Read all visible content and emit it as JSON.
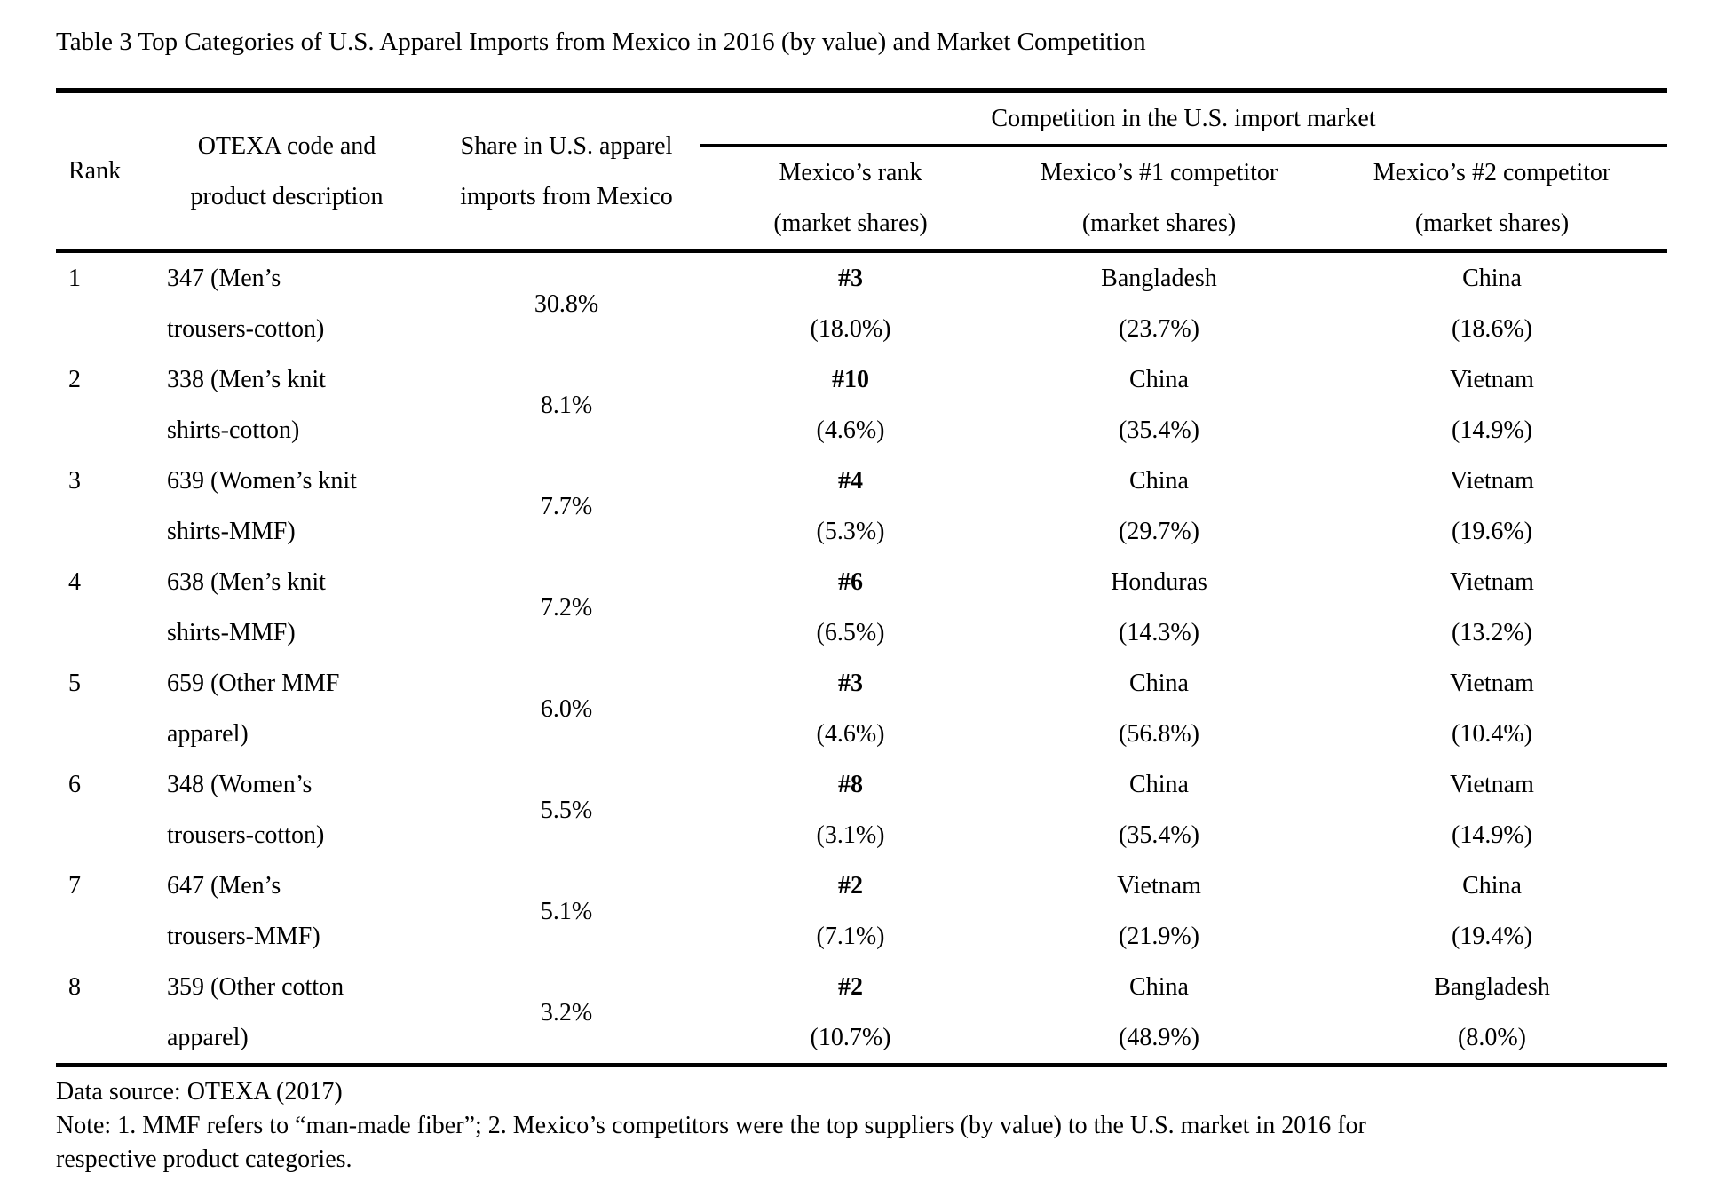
{
  "title": "Table 3 Top Categories of U.S. Apparel Imports from Mexico in 2016 (by value) and Market Competition",
  "colors": {
    "text": "#000000",
    "background": "#ffffff",
    "rule": "#000000"
  },
  "header": {
    "rank": "Rank",
    "otexa_line1": "OTEXA code and",
    "otexa_line2": "product description",
    "share_line1": "Share in U.S. apparel",
    "share_line2": "imports from Mexico",
    "competition_group": "Competition in the U.S. import market",
    "mexico_rank_line1": "Mexico’s rank",
    "mexico_rank_line2": "(market shares)",
    "comp1_line1": "Mexico’s #1 competitor",
    "comp1_line2": "(market shares)",
    "comp2_line1": "Mexico’s #2 competitor",
    "comp2_line2": "(market shares)"
  },
  "rows": [
    {
      "rank": "1",
      "desc": [
        "347 (Men’s",
        "trousers-cotton)"
      ],
      "share": "30.8%",
      "mx": [
        "#3",
        "(18.0%)"
      ],
      "c1": [
        "Bangladesh",
        "(23.7%)"
      ],
      "c2": [
        "China",
        "(18.6%)"
      ]
    },
    {
      "rank": "2",
      "desc": [
        "338 (Men’s knit",
        "shirts-cotton)"
      ],
      "share": "8.1%",
      "mx": [
        "#10",
        "(4.6%)"
      ],
      "c1": [
        "China",
        "(35.4%)"
      ],
      "c2": [
        "Vietnam",
        "(14.9%)"
      ]
    },
    {
      "rank": "3",
      "desc": [
        "639 (Women’s knit",
        "shirts-MMF)"
      ],
      "share": "7.7%",
      "mx": [
        "#4",
        "(5.3%)"
      ],
      "c1": [
        "China",
        "(29.7%)"
      ],
      "c2": [
        "Vietnam",
        "(19.6%)"
      ]
    },
    {
      "rank": "4",
      "desc": [
        "638 (Men’s knit",
        "shirts-MMF)"
      ],
      "share": "7.2%",
      "mx": [
        "#6",
        "(6.5%)"
      ],
      "c1": [
        "Honduras",
        "(14.3%)"
      ],
      "c2": [
        "Vietnam",
        "(13.2%)"
      ]
    },
    {
      "rank": "5",
      "desc": [
        "659 (Other MMF",
        "apparel)"
      ],
      "share": "6.0%",
      "mx": [
        "#3",
        "(4.6%)"
      ],
      "c1": [
        "China",
        "(56.8%)"
      ],
      "c2": [
        "Vietnam",
        "(10.4%)"
      ]
    },
    {
      "rank": "6",
      "desc": [
        "348 (Women’s",
        "trousers-cotton)"
      ],
      "share": "5.5%",
      "mx": [
        "#8",
        "(3.1%)"
      ],
      "c1": [
        "China",
        "(35.4%)"
      ],
      "c2": [
        "Vietnam",
        "(14.9%)"
      ]
    },
    {
      "rank": "7",
      "desc": [
        "647 (Men’s",
        "trousers-MMF)"
      ],
      "share": "5.1%",
      "mx": [
        "#2",
        "(7.1%)"
      ],
      "c1": [
        "Vietnam",
        "(21.9%)"
      ],
      "c2": [
        "China",
        "(19.4%)"
      ]
    },
    {
      "rank": "8",
      "desc": [
        "359 (Other cotton",
        "apparel)"
      ],
      "share": "3.2%",
      "mx": [
        "#2",
        "(10.7%)"
      ],
      "c1": [
        "China",
        "(48.9%)"
      ],
      "c2": [
        "Bangladesh",
        "(8.0%)"
      ]
    }
  ],
  "footer": {
    "source": "Data source: OTEXA (2017)",
    "note_lines": [
      "Note: 1. MMF refers to “man-made fiber”; 2. Mexico’s competitors were the top suppliers (by value) to the U.S. market in 2016 for",
      "respective product categories."
    ]
  }
}
